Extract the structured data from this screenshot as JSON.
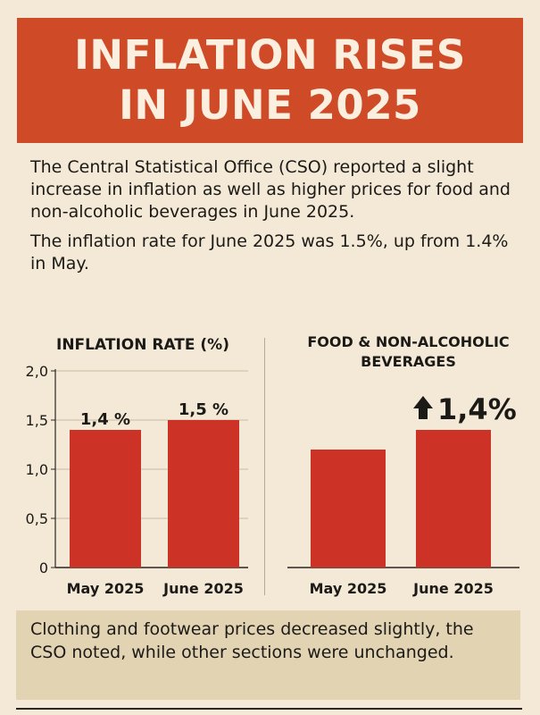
{
  "header": {
    "title_line1": "INFLATION RISES",
    "title_line2": "IN JUNE 2025"
  },
  "intro": {
    "p1": "The Central Statistical Office (CSO) reported a slight increase in inflation as well as higher prices for food and non-alcoholic beverages in June 2025.",
    "p2": "The inflation rate for June 2025 was 1.5%, up from 1.4% in May."
  },
  "chart_data": [
    {
      "type": "bar",
      "title": "INFLATION RATE (%)",
      "categories": [
        "May 2025",
        "June 2025"
      ],
      "values": [
        1.4,
        1.5
      ],
      "data_labels": [
        "1,4 %",
        "1,5 %"
      ],
      "yticks": [
        "0",
        "0,5",
        "1,0",
        "1,5",
        "2,0"
      ],
      "ylim": [
        0,
        2.0
      ],
      "bar_color": "#cc3225"
    },
    {
      "type": "bar",
      "title_line1": "FOOD & NON-ALCOHOLIC",
      "title_line2": "BEVERAGES",
      "categories": [
        "May 2025",
        "June 2025"
      ],
      "values": [
        1.2,
        1.4
      ],
      "annotation": "1,4%",
      "annotation_icon": "up-arrow-icon",
      "ylim": [
        0,
        2.0
      ],
      "bar_color": "#cc3225"
    }
  ],
  "footnote": {
    "text": "Clothing and footwear prices decreased slightly, the CSO noted, while other sections were unchanged."
  }
}
